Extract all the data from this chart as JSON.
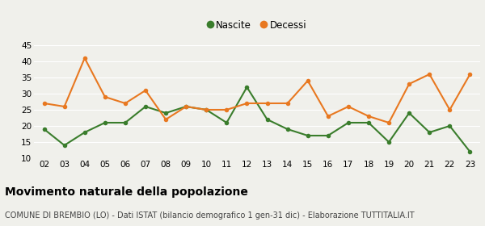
{
  "years": [
    "02",
    "03",
    "04",
    "05",
    "06",
    "07",
    "08",
    "09",
    "10",
    "11",
    "12",
    "13",
    "14",
    "15",
    "16",
    "17",
    "18",
    "19",
    "20",
    "21",
    "22",
    "23"
  ],
  "nascite": [
    19,
    14,
    18,
    21,
    21,
    26,
    24,
    26,
    25,
    21,
    32,
    22,
    19,
    17,
    17,
    21,
    21,
    15,
    24,
    18,
    20,
    12
  ],
  "decessi": [
    27,
    26,
    41,
    29,
    27,
    31,
    22,
    26,
    25,
    25,
    27,
    27,
    27,
    34,
    23,
    26,
    23,
    21,
    33,
    36,
    25,
    36
  ],
  "nascite_color": "#3a7d2c",
  "decessi_color": "#e87820",
  "background_color": "#f0f0eb",
  "grid_color": "#ffffff",
  "ylim": [
    10,
    45
  ],
  "yticks": [
    10,
    15,
    20,
    25,
    30,
    35,
    40,
    45
  ],
  "title": "Movimento naturale della popolazione",
  "subtitle": "COMUNE DI BREMBIO (LO) - Dati ISTAT (bilancio demografico 1 gen-31 dic) - Elaborazione TUTTITALIA.IT",
  "legend_nascite": "Nascite",
  "legend_decessi": "Decessi",
  "title_fontsize": 10,
  "subtitle_fontsize": 7,
  "legend_fontsize": 8.5,
  "tick_fontsize": 7.5,
  "marker_size": 4,
  "linewidth": 1.5
}
